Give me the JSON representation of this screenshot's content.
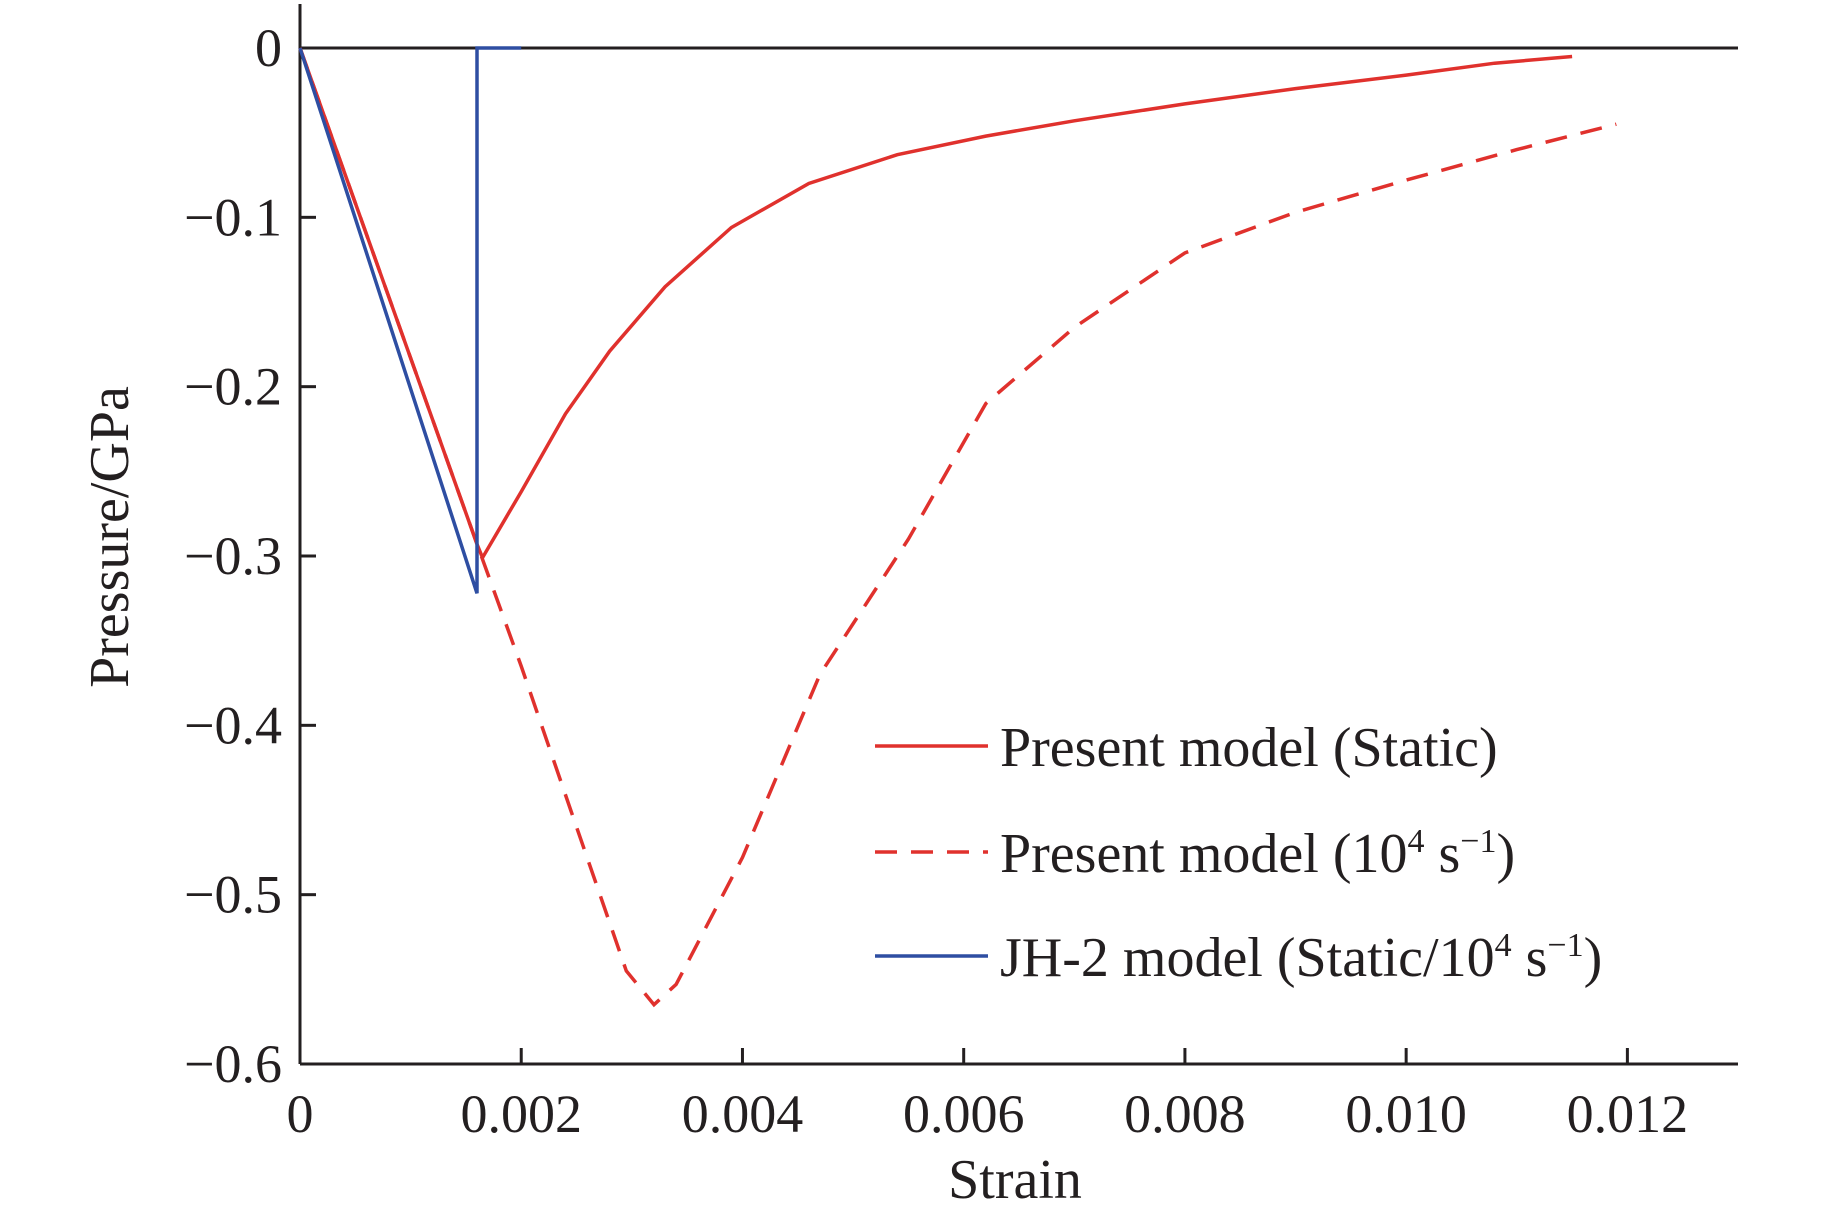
{
  "chart_data": {
    "type": "line",
    "title": "",
    "xlabel": "Strain",
    "ylabel": "Pressure/GPa",
    "xlim": [
      0,
      0.013
    ],
    "ylim": [
      -0.6,
      0.0
    ],
    "x_ticks": [
      0,
      0.002,
      0.004,
      0.006,
      0.008,
      0.01,
      0.012
    ],
    "x_tick_labels": [
      "0",
      "0.002",
      "0.004",
      "0.006",
      "0.008",
      "0.010",
      "0.012"
    ],
    "y_ticks": [
      0,
      -0.1,
      -0.2,
      -0.3,
      -0.4,
      -0.5,
      -0.6
    ],
    "y_tick_labels": [
      "0",
      "−0.1",
      "−0.2",
      "−0.3",
      "−0.4",
      "−0.5",
      "−0.6"
    ],
    "grid": false,
    "zero_line": true,
    "legend_position": "bottom-right",
    "series": [
      {
        "name": "Present model (Static)",
        "legend_main": "Present model (Static)",
        "color": "#e0312d",
        "style": "solid",
        "x": [
          0,
          0.0016,
          0.00165,
          0.002,
          0.0024,
          0.0028,
          0.0033,
          0.0039,
          0.0046,
          0.0054,
          0.0062,
          0.007,
          0.008,
          0.009,
          0.01,
          0.0108,
          0.0115
        ],
        "y": [
          0,
          -0.293,
          -0.301,
          -0.262,
          -0.216,
          -0.179,
          -0.141,
          -0.106,
          -0.08,
          -0.063,
          -0.052,
          -0.043,
          -0.033,
          -0.024,
          -0.016,
          -0.009,
          -0.005
        ]
      },
      {
        "name": "Present model (10^4 s^-1)",
        "legend_main": "Present model (10",
        "legend_sup": "4",
        "legend_mid": " s",
        "legend_sup2": "−1",
        "legend_end": ")",
        "color": "#e0312d",
        "style": "dashed",
        "x": [
          0,
          0.0016,
          0.002,
          0.0025,
          0.00295,
          0.0032,
          0.0034,
          0.004,
          0.0047,
          0.0055,
          0.0062,
          0.007,
          0.008,
          0.009,
          0.01,
          0.011,
          0.0119
        ],
        "y": [
          0,
          -0.293,
          -0.365,
          -0.46,
          -0.545,
          -0.565,
          -0.553,
          -0.478,
          -0.37,
          -0.29,
          -0.21,
          -0.165,
          -0.121,
          -0.097,
          -0.078,
          -0.06,
          -0.045
        ]
      },
      {
        "name": "JH-2 model (Static/10^4 s^-1)",
        "legend_main": "JH-2 model (Static/10",
        "legend_sup": "4",
        "legend_mid": " s",
        "legend_sup2": "−1",
        "legend_end": ")",
        "color": "#2e4ea2",
        "style": "solid",
        "x": [
          0,
          0.0016,
          0.0016,
          0.002
        ],
        "y": [
          0,
          -0.322,
          0,
          0
        ]
      }
    ]
  }
}
